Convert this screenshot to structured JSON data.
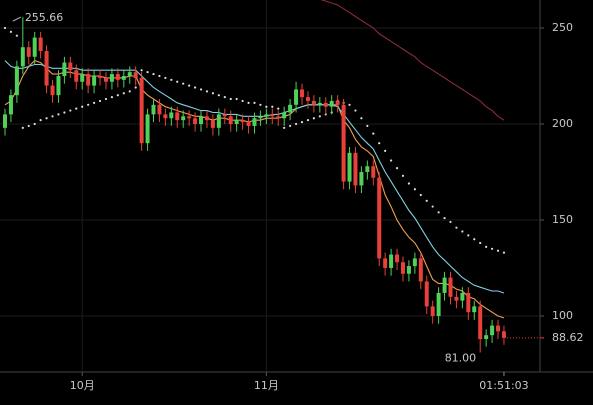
{
  "chart_data": {
    "type": "candlestick",
    "categories": [
      null,
      null,
      null,
      null,
      null,
      null,
      null,
      null,
      null,
      null,
      null,
      null,
      null,
      null,
      null,
      null,
      null,
      null,
      null,
      null,
      null,
      null,
      null,
      null,
      null,
      null,
      null,
      null,
      null,
      null,
      null,
      null,
      null,
      null,
      null,
      null,
      null,
      null,
      null,
      null,
      null,
      null,
      null,
      null,
      null,
      null,
      null,
      null,
      null,
      null,
      null,
      null,
      null,
      null,
      null,
      null,
      null,
      null,
      null,
      null,
      null,
      null,
      null,
      null,
      null,
      null,
      null,
      null,
      null,
      null,
      null,
      null,
      null,
      null,
      null,
      null,
      null,
      null,
      null,
      null,
      null,
      null,
      null,
      null,
      null
    ],
    "open": [
      198,
      205,
      215,
      230,
      240,
      235,
      245,
      238,
      220,
      215,
      225,
      232,
      228,
      222,
      226,
      220,
      225,
      224,
      222,
      226,
      223,
      225,
      227,
      224,
      190,
      205,
      210,
      205,
      203,
      206,
      202,
      204,
      203,
      200,
      204,
      202,
      198,
      205,
      204,
      200,
      202,
      201,
      199,
      203,
      204,
      205,
      204,
      203,
      206,
      210,
      218,
      214,
      212,
      210,
      211,
      209,
      212,
      210,
      170,
      185,
      168,
      175,
      178,
      172,
      130,
      125,
      132,
      128,
      122,
      126,
      130,
      118,
      105,
      100,
      112,
      120,
      110,
      108,
      112,
      102,
      105,
      88,
      90,
      95,
      92
    ],
    "high": [
      208,
      218,
      233,
      255.66,
      243,
      248,
      248,
      241,
      223,
      228,
      235,
      235,
      231,
      229,
      229,
      228,
      228,
      227,
      229,
      229,
      228,
      230,
      230,
      227,
      208,
      213,
      213,
      208,
      209,
      209,
      207,
      207,
      206,
      207,
      207,
      205,
      208,
      208,
      207,
      205,
      205,
      204,
      206,
      207,
      208,
      208,
      207,
      209,
      213,
      222,
      221,
      217,
      215,
      214,
      214,
      215,
      215,
      213,
      188,
      188,
      178,
      181,
      181,
      175,
      133,
      135,
      135,
      131,
      129,
      133,
      133,
      121,
      108,
      115,
      123,
      123,
      113,
      115,
      115,
      108,
      108,
      93,
      98,
      98,
      95
    ],
    "low": [
      194,
      201,
      211,
      226,
      231,
      231,
      234,
      216,
      211,
      211,
      221,
      224,
      218,
      218,
      216,
      216,
      220,
      218,
      218,
      219,
      219,
      221,
      220,
      186,
      186,
      201,
      201,
      199,
      199,
      198,
      198,
      199,
      196,
      196,
      198,
      194,
      194,
      200,
      196,
      196,
      197,
      195,
      195,
      199,
      200,
      200,
      199,
      199,
      202,
      206,
      210,
      208,
      206,
      206,
      205,
      205,
      206,
      166,
      166,
      164,
      164,
      171,
      168,
      126,
      121,
      121,
      124,
      118,
      118,
      122,
      114,
      101,
      96,
      96,
      108,
      106,
      104,
      104,
      98,
      98,
      81,
      84,
      86,
      88,
      85
    ],
    "close": [
      205,
      215,
      230,
      240,
      235,
      245,
      238,
      220,
      215,
      225,
      232,
      228,
      222,
      226,
      220,
      225,
      224,
      222,
      226,
      223,
      225,
      227,
      224,
      190,
      205,
      210,
      205,
      203,
      206,
      202,
      204,
      203,
      200,
      204,
      202,
      198,
      205,
      204,
      200,
      202,
      201,
      199,
      203,
      204,
      205,
      204,
      203,
      206,
      210,
      218,
      214,
      212,
      210,
      211,
      209,
      212,
      210,
      170,
      185,
      168,
      175,
      178,
      172,
      130,
      125,
      132,
      128,
      122,
      126,
      130,
      118,
      105,
      100,
      112,
      120,
      110,
      108,
      112,
      102,
      105,
      88,
      90,
      95,
      92,
      88.62
    ],
    "up_color": "#4fd25a",
    "down_color": "#e8413a",
    "lines": [
      {
        "color": "#f0a050",
        "style": "solid",
        "values": [
          210,
          212,
          218,
          225,
          230,
          233,
          232,
          229,
          226,
          226,
          227,
          227,
          226,
          226,
          225,
          225,
          225,
          224,
          224,
          224,
          224,
          225,
          225,
          218,
          215,
          213,
          211,
          209,
          208,
          207,
          206,
          205,
          204,
          204,
          203,
          202,
          203,
          203,
          202,
          202,
          202,
          201,
          202,
          202,
          203,
          203,
          203,
          204,
          205,
          208,
          209,
          210,
          210,
          210,
          210,
          210,
          210,
          202,
          198,
          192,
          188,
          186,
          183,
          173,
          163,
          157,
          150,
          145,
          141,
          138,
          133,
          126,
          119,
          117,
          117,
          116,
          114,
          113,
          110,
          109,
          106,
          104,
          102,
          100,
          99
        ]
      },
      {
        "color": "#7fd0e0",
        "style": "solid",
        "values": [
          233,
          230,
          229,
          229,
          230,
          231,
          231,
          230,
          229,
          229,
          229,
          229,
          229,
          228,
          228,
          228,
          228,
          228,
          228,
          228,
          228,
          228,
          228,
          225,
          222,
          219,
          217,
          215,
          213,
          211,
          210,
          209,
          208,
          207,
          207,
          206,
          206,
          205,
          205,
          205,
          204,
          204,
          204,
          204,
          204,
          205,
          205,
          206,
          207,
          208,
          209,
          210,
          210,
          210,
          210,
          210,
          209,
          205,
          201,
          197,
          193,
          190,
          187,
          181,
          175,
          170,
          165,
          160,
          155,
          151,
          146,
          141,
          136,
          132,
          129,
          126,
          123,
          120,
          118,
          116,
          115,
          114,
          113,
          113,
          112
        ]
      },
      {
        "color": "#dddddd",
        "style": "dotted",
        "values": [
          250,
          248,
          246,
          198,
          199,
          200,
          202,
          203,
          204,
          205,
          206,
          207,
          208,
          209,
          210,
          211,
          212,
          213,
          214,
          215,
          216,
          217,
          219,
          228,
          227,
          226,
          225,
          224,
          223,
          222,
          221,
          220,
          219,
          218,
          217,
          216,
          215,
          214,
          213,
          213,
          212,
          211,
          211,
          210,
          209,
          209,
          208,
          198,
          199,
          200,
          201,
          202,
          203,
          204,
          205,
          206,
          212,
          211,
          210,
          207,
          203,
          199,
          195,
          190,
          186,
          181,
          177,
          173,
          169,
          166,
          163,
          160,
          157,
          154,
          151,
          149,
          146,
          144,
          142,
          140,
          138,
          136,
          135,
          134,
          133
        ]
      },
      {
        "color": "#8b2a3a",
        "style": "solid",
        "values": [
          null,
          null,
          null,
          null,
          null,
          null,
          null,
          null,
          null,
          null,
          null,
          null,
          null,
          null,
          null,
          null,
          null,
          null,
          null,
          null,
          null,
          null,
          null,
          null,
          null,
          null,
          null,
          null,
          null,
          null,
          null,
          null,
          null,
          null,
          null,
          null,
          null,
          null,
          null,
          null,
          null,
          null,
          null,
          null,
          null,
          null,
          null,
          null,
          null,
          null,
          null,
          null,
          null,
          265,
          264,
          263,
          262,
          260,
          258,
          256,
          254,
          252,
          250,
          247,
          245,
          243,
          241,
          239,
          237,
          235,
          232,
          230,
          228,
          226,
          224,
          222,
          220,
          218,
          216,
          214,
          212,
          209,
          207,
          204,
          202
        ]
      }
    ],
    "ylim": [
      70.83,
      264.58
    ],
    "yticks": [
      100,
      150,
      200,
      250
    ],
    "xticks": [
      {
        "value": 13,
        "label": "10月"
      },
      {
        "value": 44,
        "label": "11月"
      }
    ],
    "current_time": "01:51:03",
    "last_price": 88.62,
    "max_label_index": 3,
    "min_label": "81.00",
    "grid": true
  }
}
